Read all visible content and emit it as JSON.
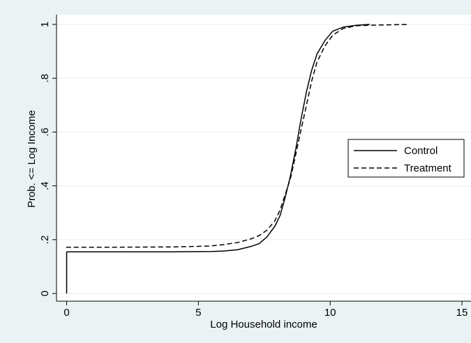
{
  "chart_data": {
    "type": "line",
    "title": "",
    "xlabel": "Log Household income",
    "ylabel": "Prob. <= Log Income",
    "xlim": [
      0,
      15
    ],
    "ylim": [
      0,
      1
    ],
    "x_ticks": [
      0,
      5,
      10,
      15
    ],
    "x_tick_labels": [
      "0",
      "5",
      "10",
      "15"
    ],
    "y_ticks": [
      0,
      0.2,
      0.4,
      0.6,
      0.8,
      1
    ],
    "y_tick_labels": [
      "0",
      ".2",
      ".4",
      ".6",
      ".8",
      "1"
    ],
    "grid": "horizontal",
    "legend_position": "right",
    "colors": {
      "plot_background": "#ffffff",
      "outer_background": "#eaf2f3",
      "grid": "#eaf2f3",
      "line": "#000000"
    },
    "series": [
      {
        "name": "Control",
        "style": "solid",
        "points": [
          [
            0,
            0
          ],
          [
            0,
            0.155
          ],
          [
            2,
            0.155
          ],
          [
            4,
            0.155
          ],
          [
            5.5,
            0.156
          ],
          [
            6,
            0.158
          ],
          [
            6.5,
            0.163
          ],
          [
            7,
            0.175
          ],
          [
            7.3,
            0.185
          ],
          [
            7.6,
            0.21
          ],
          [
            7.9,
            0.25
          ],
          [
            8.1,
            0.29
          ],
          [
            8.3,
            0.36
          ],
          [
            8.5,
            0.44
          ],
          [
            8.7,
            0.54
          ],
          [
            8.9,
            0.65
          ],
          [
            9.1,
            0.75
          ],
          [
            9.3,
            0.83
          ],
          [
            9.5,
            0.89
          ],
          [
            9.8,
            0.94
          ],
          [
            10.1,
            0.975
          ],
          [
            10.5,
            0.99
          ],
          [
            11,
            0.997
          ],
          [
            11.5,
            1.0
          ]
        ]
      },
      {
        "name": "Treatment",
        "style": "dashed",
        "points": [
          [
            0,
            0.17
          ],
          [
            0,
            0.172
          ],
          [
            2,
            0.172
          ],
          [
            4,
            0.173
          ],
          [
            5,
            0.175
          ],
          [
            5.5,
            0.177
          ],
          [
            6,
            0.182
          ],
          [
            6.5,
            0.19
          ],
          [
            7,
            0.203
          ],
          [
            7.3,
            0.215
          ],
          [
            7.6,
            0.235
          ],
          [
            7.9,
            0.27
          ],
          [
            8.1,
            0.31
          ],
          [
            8.3,
            0.37
          ],
          [
            8.5,
            0.43
          ],
          [
            8.7,
            0.52
          ],
          [
            8.9,
            0.61
          ],
          [
            9.1,
            0.7
          ],
          [
            9.3,
            0.79
          ],
          [
            9.5,
            0.86
          ],
          [
            9.8,
            0.92
          ],
          [
            10.1,
            0.96
          ],
          [
            10.5,
            0.985
          ],
          [
            11,
            0.995
          ],
          [
            11.5,
            0.997
          ],
          [
            12,
            0.998
          ],
          [
            12.5,
            0.999
          ],
          [
            13,
            1.0
          ]
        ]
      }
    ]
  }
}
